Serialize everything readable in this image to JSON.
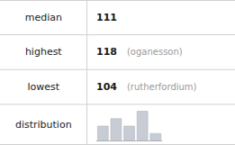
{
  "chart_data": {
    "type": "bar",
    "rows": [
      {
        "label": "median",
        "value": 111
      },
      {
        "label": "highest",
        "value": 118,
        "note": "(oganesson)"
      },
      {
        "label": "lowest",
        "value": 104,
        "note": "(rutherfordium)"
      },
      {
        "label": "distribution"
      }
    ],
    "categories": [
      null,
      null,
      null,
      null,
      null
    ],
    "values": [
      2,
      3,
      2,
      4,
      1
    ],
    "color": "#c8ccd4",
    "ylim": [
      0,
      4.3
    ],
    "tick_labels": false,
    "grid": false
  }
}
